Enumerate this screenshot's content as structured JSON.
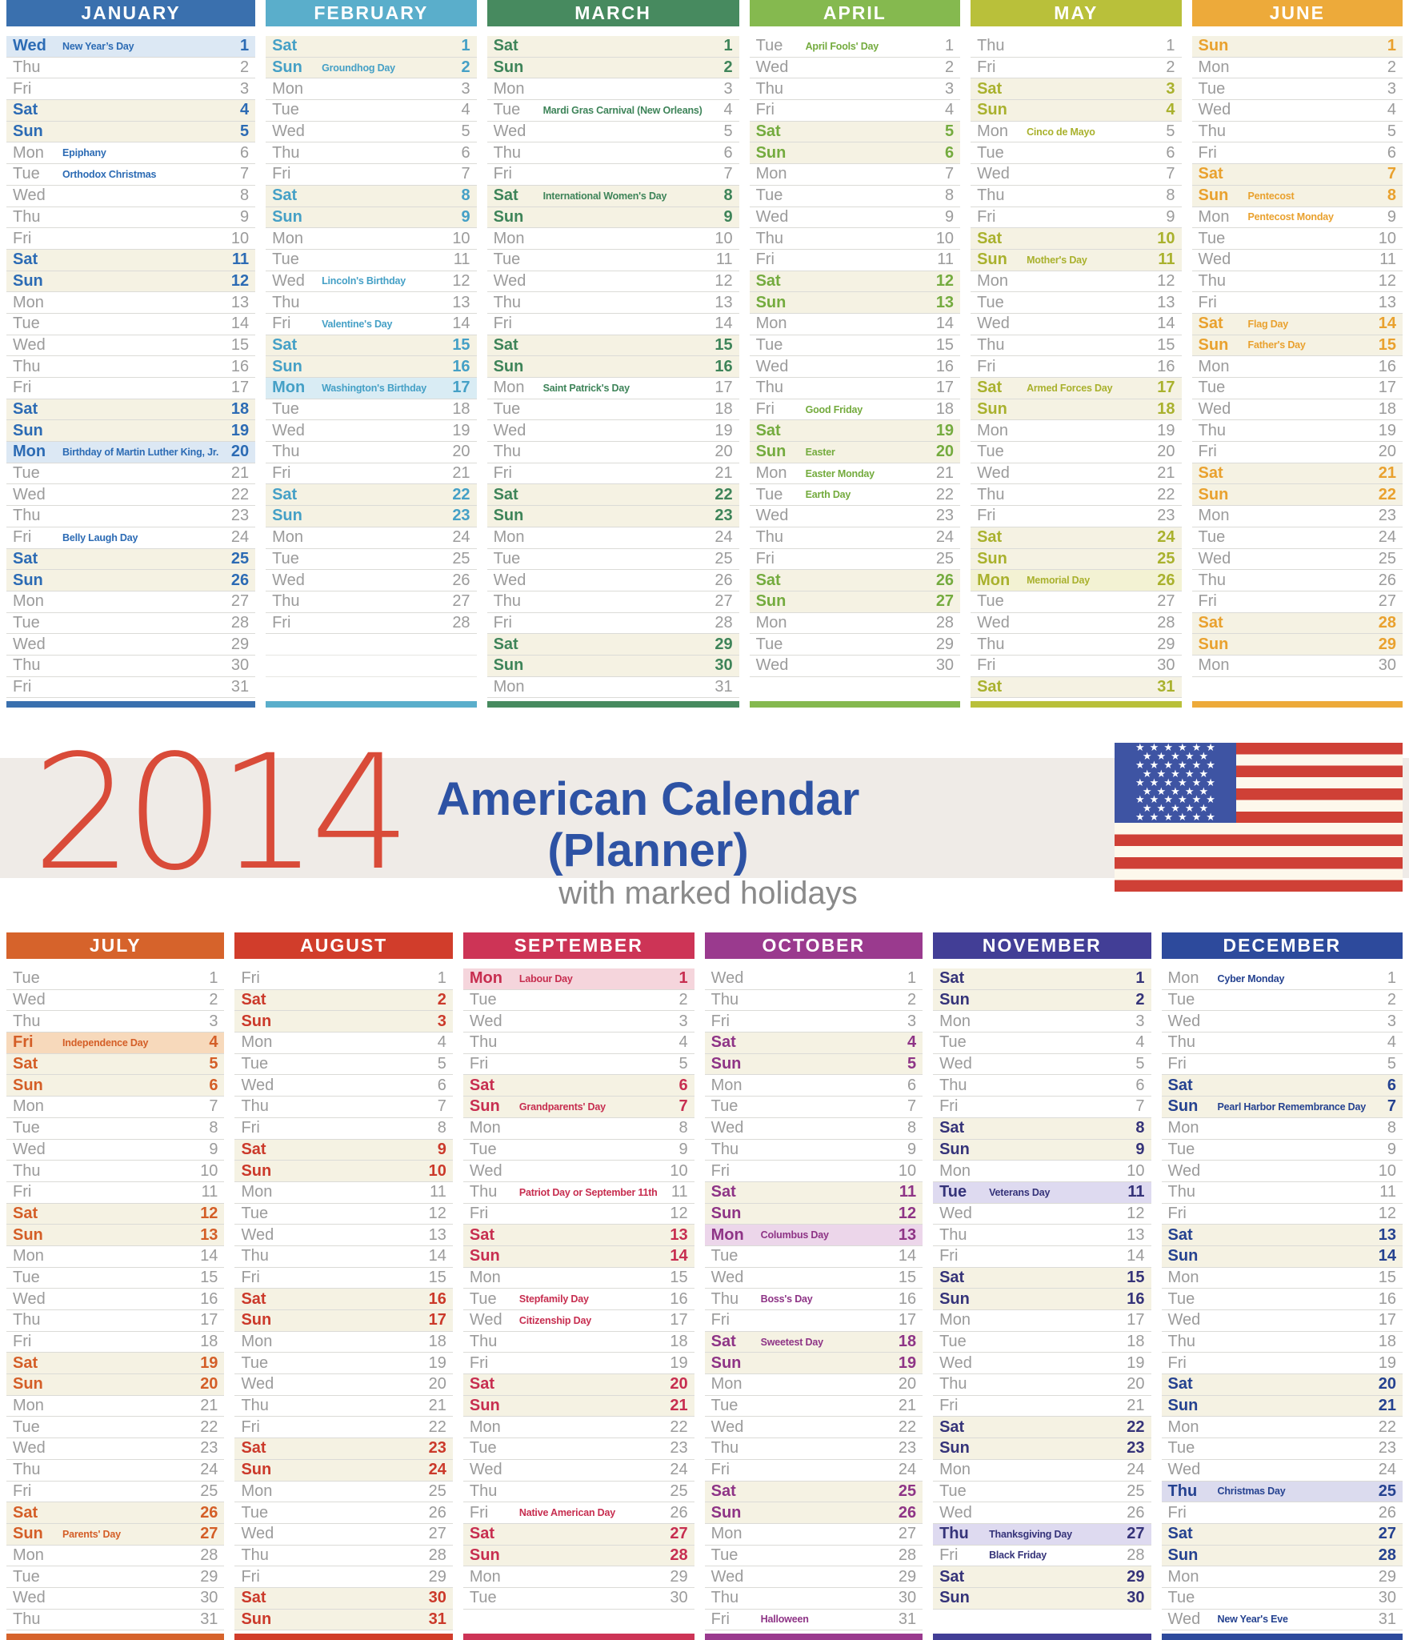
{
  "banner": {
    "year": "2014",
    "title": "American Calendar (Planner)",
    "subtitle": "with marked holidays"
  },
  "weekdays": [
    "Mon",
    "Tue",
    "Wed",
    "Thu",
    "Fri",
    "Sat",
    "Sun"
  ],
  "weekend_bg": "#f5f2e3",
  "weekday_text_color": "#9b9b9b",
  "banner_bg": "#efebe7",
  "year_color": "#d94b39",
  "title_color": "#2d52a4",
  "subtitle_color": "#8a8a8a",
  "flag": {
    "name": "us-flag",
    "star_glyph": "★",
    "canton_color": "#3e54a3",
    "stripe_red": "#cf4036",
    "stripe_white": "#fdf8ec"
  },
  "months": [
    {
      "name": "JANUARY",
      "days": 31,
      "start": 2,
      "color": "#3a70ae",
      "accent": "#2c6bb4",
      "tint": "#dce8f4",
      "holidays": [
        {
          "day": 1,
          "label": "New Year’s Day",
          "highlight": true
        },
        {
          "day": 6,
          "label": "Epiphany"
        },
        {
          "day": 7,
          "label": "Orthodox Christmas"
        },
        {
          "day": 20,
          "label": "Birthday of Martin Luther King, Jr.",
          "highlight": true
        },
        {
          "day": 24,
          "label": "Belly Laugh Day"
        }
      ]
    },
    {
      "name": "FEBRUARY",
      "days": 28,
      "start": 5,
      "color": "#5aaecb",
      "accent": "#45a0c6",
      "tint": "#d9ecf4",
      "holidays": [
        {
          "day": 2,
          "label": "Groundhog Day"
        },
        {
          "day": 12,
          "label": "Lincoln's Birthday"
        },
        {
          "day": 14,
          "label": "Valentine's Day"
        },
        {
          "day": 17,
          "label": "Washington's Birthday",
          "highlight": true
        }
      ]
    },
    {
      "name": "MARCH",
      "days": 31,
      "start": 5,
      "color": "#478a5f",
      "accent": "#3e8459",
      "tint": "#ddeee3",
      "holidays": [
        {
          "day": 4,
          "label": "Mardi Gras Carnival (New Orleans)"
        },
        {
          "day": 8,
          "label": "International Women's Day"
        },
        {
          "day": 17,
          "label": "Saint Patrick's Day"
        }
      ]
    },
    {
      "name": "APRIL",
      "days": 30,
      "start": 1,
      "color": "#85b94f",
      "accent": "#74ab3e",
      "tint": "#e8f2da",
      "holidays": [
        {
          "day": 1,
          "label": "April Fools' Day"
        },
        {
          "day": 18,
          "label": "Good Friday"
        },
        {
          "day": 20,
          "label": "Easter"
        },
        {
          "day": 21,
          "label": "Easter Monday"
        },
        {
          "day": 22,
          "label": "Earth Day"
        }
      ]
    },
    {
      "name": "MAY",
      "days": 31,
      "start": 3,
      "color": "#b9c03a",
      "accent": "#a9b12d",
      "tint": "#f3f2d3",
      "holidays": [
        {
          "day": 5,
          "label": "Cinco de Mayo"
        },
        {
          "day": 11,
          "label": "Mother's Day"
        },
        {
          "day": 17,
          "label": "Armed Forces Day"
        },
        {
          "day": 26,
          "label": "Memorial Day",
          "highlight": true
        }
      ]
    },
    {
      "name": "JUNE",
      "days": 30,
      "start": 6,
      "color": "#edaa3a",
      "accent": "#e9a12e",
      "tint": "#fcefd4",
      "holidays": [
        {
          "day": 8,
          "label": "Pentecost"
        },
        {
          "day": 9,
          "label": "Pentecost Monday"
        },
        {
          "day": 14,
          "label": "Flag Day"
        },
        {
          "day": 15,
          "label": "Father's Day"
        }
      ]
    },
    {
      "name": "JULY",
      "days": 31,
      "start": 1,
      "color": "#d6632b",
      "accent": "#d45e27",
      "tint": "#f7d9bb",
      "holidays": [
        {
          "day": 4,
          "label": "Independence Day",
          "highlight": true
        },
        {
          "day": 27,
          "label": "Parents' Day"
        }
      ]
    },
    {
      "name": "AUGUST",
      "days": 31,
      "start": 4,
      "color": "#d13d2b",
      "accent": "#cb392a",
      "tint": "#f8d8d2",
      "holidays": []
    },
    {
      "name": "SEPTEMBER",
      "days": 30,
      "start": 0,
      "color": "#cd3456",
      "accent": "#c72e50",
      "tint": "#f5d5dc",
      "holidays": [
        {
          "day": 1,
          "label": "Labour Day",
          "highlight": true
        },
        {
          "day": 7,
          "label": "Grandparents' Day"
        },
        {
          "day": 11,
          "label": "Patriot Day or September 11th"
        },
        {
          "day": 16,
          "label": "Stepfamily Day"
        },
        {
          "day": 17,
          "label": "Citizenship Day"
        },
        {
          "day": 26,
          "label": "Native American Day"
        }
      ]
    },
    {
      "name": "OCTOBER",
      "days": 31,
      "start": 2,
      "color": "#9a3a8e",
      "accent": "#8e3486",
      "tint": "#ecd6ea",
      "holidays": [
        {
          "day": 13,
          "label": "Columbus Day",
          "highlight": true
        },
        {
          "day": 16,
          "label": "Boss's Day"
        },
        {
          "day": 18,
          "label": "Sweetest Day"
        },
        {
          "day": 31,
          "label": "Halloween"
        }
      ]
    },
    {
      "name": "NOVEMBER",
      "days": 30,
      "start": 5,
      "color": "#423e96",
      "accent": "#353379",
      "tint": "#dedaf0",
      "holidays": [
        {
          "day": 11,
          "label": "Veterans Day",
          "highlight": true
        },
        {
          "day": 27,
          "label": "Thanksgiving Day",
          "highlight": true
        },
        {
          "day": 28,
          "label": "Black Friday"
        }
      ]
    },
    {
      "name": "DECEMBER",
      "days": 31,
      "start": 0,
      "color": "#2d4a9c",
      "accent": "#254290",
      "tint": "#dbdbee",
      "holidays": [
        {
          "day": 1,
          "label": "Cyber Monday"
        },
        {
          "day": 7,
          "label": "Pearl Harbor Remembrance Day"
        },
        {
          "day": 25,
          "label": "Christmas Day",
          "highlight": true
        },
        {
          "day": 31,
          "label": "New Year's Eve"
        }
      ]
    }
  ]
}
